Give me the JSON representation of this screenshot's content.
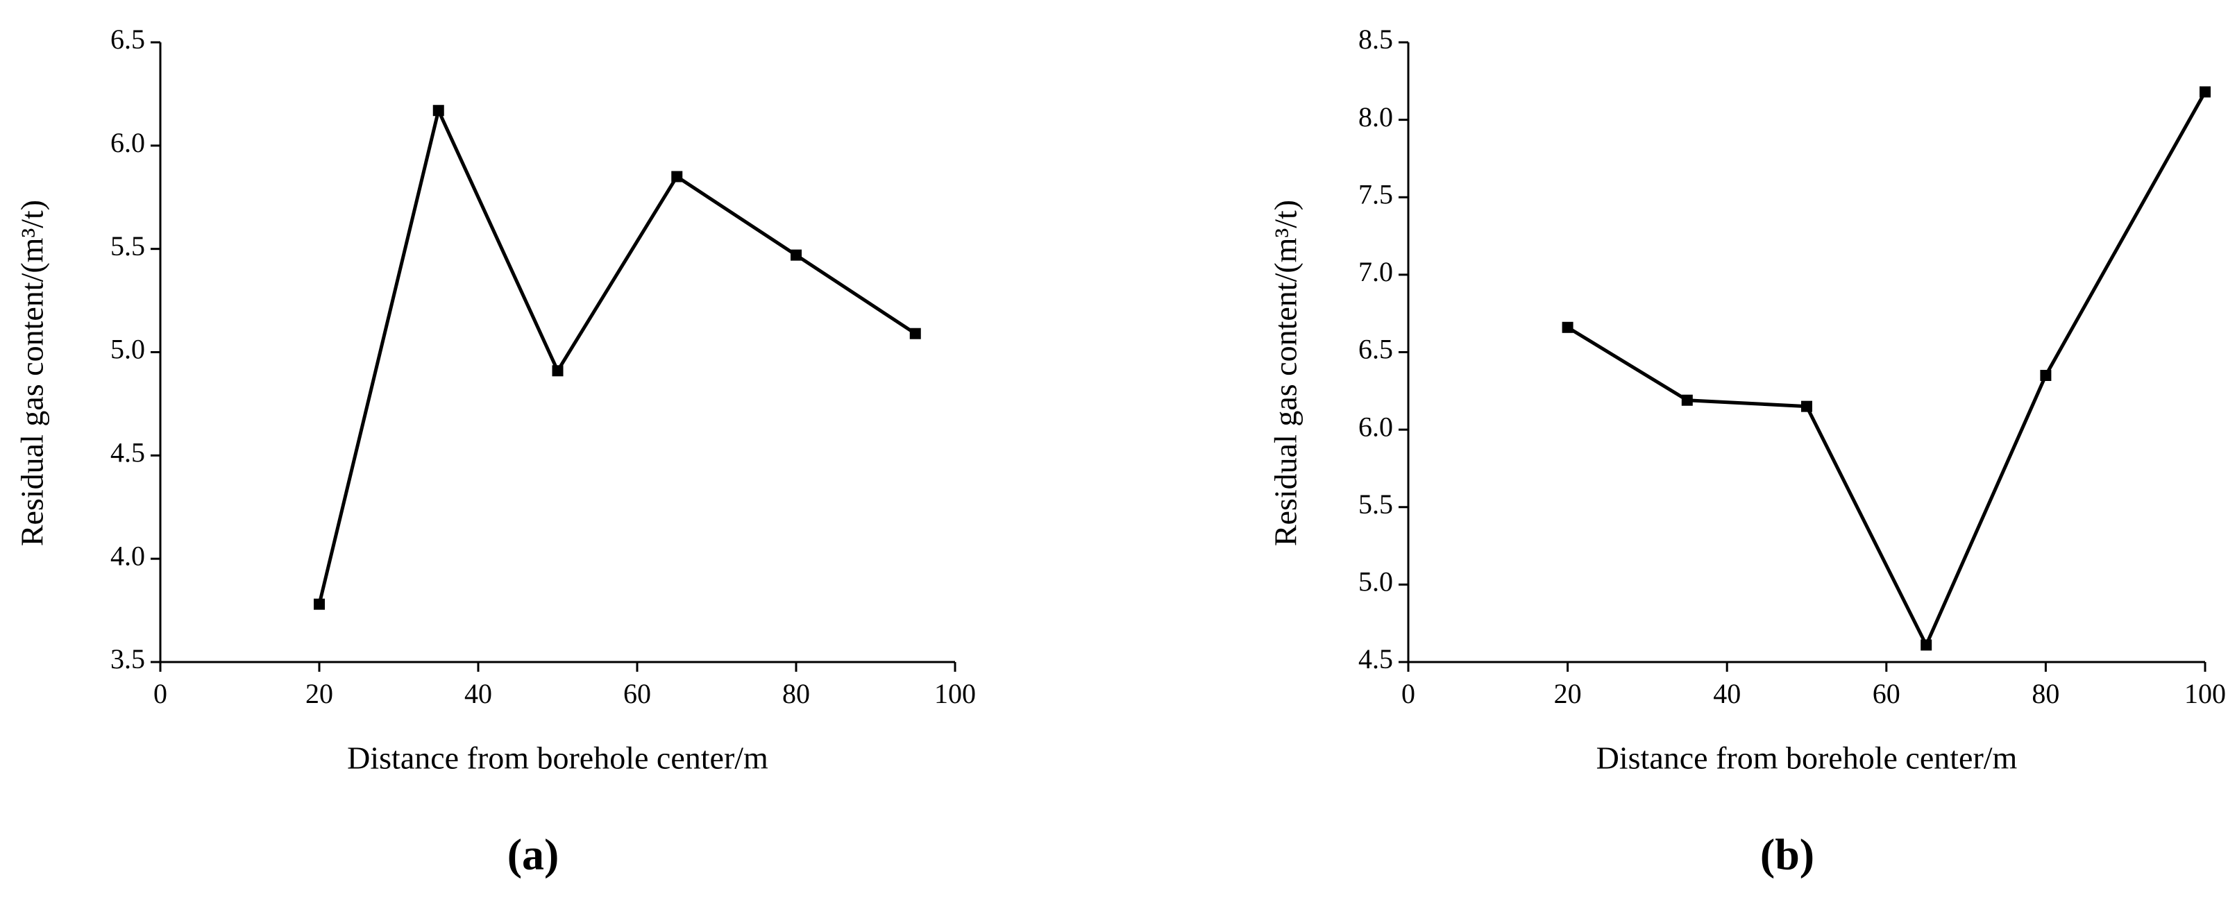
{
  "chart_data": [
    {
      "type": "line",
      "panel_label": "(a)",
      "x_label": "Distance from borehole center/m",
      "y_label": "Residual gas content/(m³/t)",
      "x": [
        20,
        35,
        50,
        65,
        80,
        95
      ],
      "values": [
        3.78,
        6.17,
        4.91,
        5.85,
        5.47,
        5.09
      ],
      "color": "#000000",
      "xlim": [
        0,
        100
      ],
      "xticks": [
        0,
        20,
        40,
        60,
        80,
        100
      ],
      "ylim": [
        3.5,
        6.5
      ],
      "yticks": [
        3.5,
        {
          "value": 4,
          "label": "4.0"
        },
        4.5,
        {
          "value": 5,
          "label": "5.0"
        },
        5.5,
        {
          "value": 6,
          "label": "6.0"
        },
        6.5
      ]
    },
    {
      "type": "line",
      "panel_label": "(b)",
      "x_label": "Distance from borehole center/m",
      "y_label": "Residual gas content/(m³/t)",
      "x": [
        20,
        35,
        50,
        65,
        80,
        100
      ],
      "values": [
        6.66,
        6.19,
        6.15,
        4.61,
        6.35,
        8.18
      ],
      "color": "#000000",
      "xlim": [
        0,
        100
      ],
      "xticks": [
        0,
        20,
        40,
        60,
        80,
        100
      ],
      "ylim": [
        4.5,
        8.5
      ],
      "yticks": [
        4.5,
        {
          "value": 5,
          "label": "5.0"
        },
        5.5,
        {
          "value": 6,
          "label": "6.0"
        },
        6.5,
        {
          "value": 7,
          "label": "7.0"
        },
        7.5,
        {
          "value": 8,
          "label": "8.0"
        },
        8.5
      ]
    }
  ]
}
